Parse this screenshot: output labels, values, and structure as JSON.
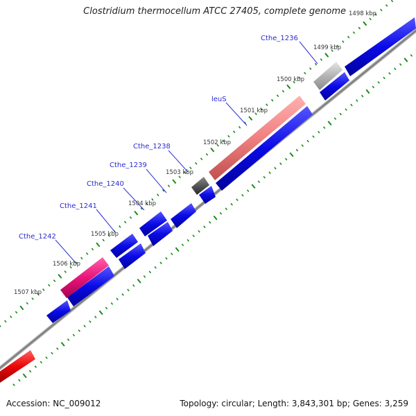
{
  "header": {
    "title": "Clostridium thermocellum ATCC 27405, complete genome"
  },
  "footer": {
    "accession": "Accession: NC_009012",
    "summary": "Topology: circular; Length: 3,843,301 bp; Genes: 3,259"
  },
  "ticks": [
    {
      "kbp": 1498,
      "label": "1498 kbp"
    },
    {
      "kbp": 1499,
      "label": "1499 kbp"
    },
    {
      "kbp": 1500,
      "label": "1500 kbp"
    },
    {
      "kbp": 1501,
      "label": "1501 kbp"
    },
    {
      "kbp": 1502,
      "label": "1502 kbp"
    },
    {
      "kbp": 1503,
      "label": "1503 kbp"
    },
    {
      "kbp": 1504,
      "label": "1504 kbp"
    },
    {
      "kbp": 1505,
      "label": "1505 kbp"
    },
    {
      "kbp": 1506,
      "label": "1506 kbp"
    },
    {
      "kbp": 1507,
      "label": "1507 kbp"
    }
  ],
  "gene_labels": [
    {
      "label": "Cthe_1236"
    },
    {
      "label": "leuS"
    },
    {
      "label": "Cthe_1238"
    },
    {
      "label": "Cthe_1239"
    },
    {
      "label": "Cthe_1240"
    },
    {
      "label": "Cthe_1241"
    },
    {
      "label": "Cthe_1242"
    }
  ],
  "colors": {
    "cds": "#0a0ae6",
    "rrna_pink": "#f08080",
    "magenta": "#e8157a",
    "grey_light": "#b4b4b4",
    "grey_dark": "#555555",
    "red": "#e80808",
    "ticks": "#1a8a1a",
    "backbone": "#808080",
    "label_text": "#2a2ad0"
  }
}
